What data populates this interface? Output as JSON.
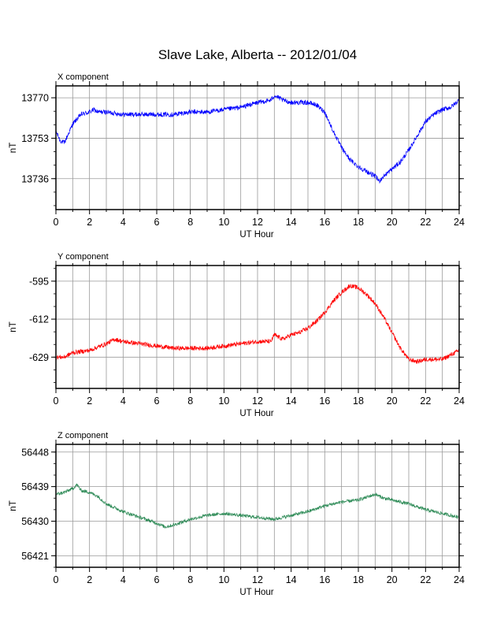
{
  "title": "Slave Lake, Alberta -- 2012/01/04",
  "chart_data": [
    {
      "type": "line",
      "name": "x-component",
      "panel_label": "X component",
      "xlabel": "UT Hour",
      "ylabel": "nT",
      "color": "#0000ff",
      "xlim": [
        0,
        24
      ],
      "ylim": [
        13723,
        13775
      ],
      "xticks": [
        0,
        2,
        4,
        6,
        8,
        10,
        12,
        14,
        16,
        18,
        20,
        22,
        24
      ],
      "yticks": [
        13736,
        13753,
        13770
      ],
      "grid": true,
      "noise": 1.0,
      "x": [
        0,
        0.25,
        0.5,
        0.75,
        1,
        1.5,
        2,
        2.25,
        2.5,
        3,
        4,
        5,
        6,
        7,
        8,
        9,
        10,
        11,
        12,
        12.8,
        13,
        13.5,
        14,
        15,
        15.5,
        16,
        16.5,
        17,
        17.5,
        18,
        18.5,
        19,
        19.25,
        19.5,
        20,
        20.5,
        21,
        21.5,
        22,
        22.5,
        23,
        23.5,
        24
      ],
      "y": [
        13756,
        13752,
        13751,
        13755,
        13759,
        13763,
        13764,
        13765,
        13764,
        13764,
        13763,
        13763,
        13763,
        13763,
        13764,
        13764,
        13765,
        13766,
        13768,
        13769,
        13771,
        13769,
        13768,
        13768,
        13767,
        13764,
        13756,
        13749,
        13744,
        13741,
        13739,
        13737,
        13735,
        13737,
        13740,
        13743,
        13748,
        13754,
        13760,
        13763,
        13765,
        13766,
        13769
      ]
    },
    {
      "type": "line",
      "name": "y-component",
      "panel_label": "Y component",
      "xlabel": "UT Hour",
      "ylabel": "nT",
      "color": "#ff0000",
      "xlim": [
        0,
        24
      ],
      "ylim": [
        -643,
        -588
      ],
      "xticks": [
        0,
        2,
        4,
        6,
        8,
        10,
        12,
        14,
        16,
        18,
        20,
        22,
        24
      ],
      "yticks": [
        -629,
        -612,
        -595
      ],
      "grid": true,
      "noise": 1.0,
      "x": [
        0,
        0.5,
        1,
        2,
        3,
        3.5,
        4,
        5,
        6,
        7,
        8,
        9,
        10,
        11,
        12,
        12.8,
        13,
        13.5,
        14,
        14.5,
        15,
        15.5,
        16,
        16.5,
        17,
        17.5,
        18,
        18.5,
        19,
        19.5,
        20,
        20.5,
        21,
        21.5,
        22,
        23,
        23.5,
        24
      ],
      "y": [
        -629,
        -629,
        -627,
        -626,
        -623,
        -621,
        -622,
        -623,
        -624,
        -625,
        -625,
        -625,
        -624,
        -623,
        -622,
        -622,
        -619,
        -621,
        -619,
        -618,
        -616,
        -613,
        -609,
        -604,
        -600,
        -597,
        -598,
        -601,
        -605,
        -611,
        -618,
        -625,
        -630,
        -631,
        -630,
        -630,
        -628,
        -626
      ]
    },
    {
      "type": "line",
      "name": "z-component",
      "panel_label": "Z component",
      "xlabel": "UT Hour",
      "ylabel": "nT",
      "color": "#2e8b57",
      "xlim": [
        0,
        24
      ],
      "ylim": [
        56418,
        56450
      ],
      "xticks": [
        0,
        2,
        4,
        6,
        8,
        10,
        12,
        14,
        16,
        18,
        20,
        22,
        24
      ],
      "yticks": [
        56421,
        56430,
        56439,
        56448
      ],
      "grid": true,
      "noise": 0.45,
      "x": [
        0,
        0.5,
        1,
        1.25,
        1.5,
        2,
        2.5,
        3,
        4,
        5,
        6,
        6.5,
        7,
        8,
        9,
        10,
        11,
        12,
        13,
        13.5,
        14,
        15,
        16,
        17,
        18,
        19,
        19.5,
        20,
        21,
        22,
        22.5,
        23,
        23.5,
        24
      ],
      "y": [
        56437,
        56437.5,
        56438.5,
        56439.5,
        56438,
        56437.5,
        56436.5,
        56434.5,
        56432.5,
        56431,
        56429.5,
        56428.5,
        56429,
        56430.5,
        56431.5,
        56432,
        56431.5,
        56431,
        56430.5,
        56431,
        56431.5,
        56432.5,
        56434,
        56435,
        56435.5,
        56437,
        56436,
        56435.5,
        56434.5,
        56433,
        56432.5,
        56432,
        56431.5,
        56431
      ]
    }
  ]
}
